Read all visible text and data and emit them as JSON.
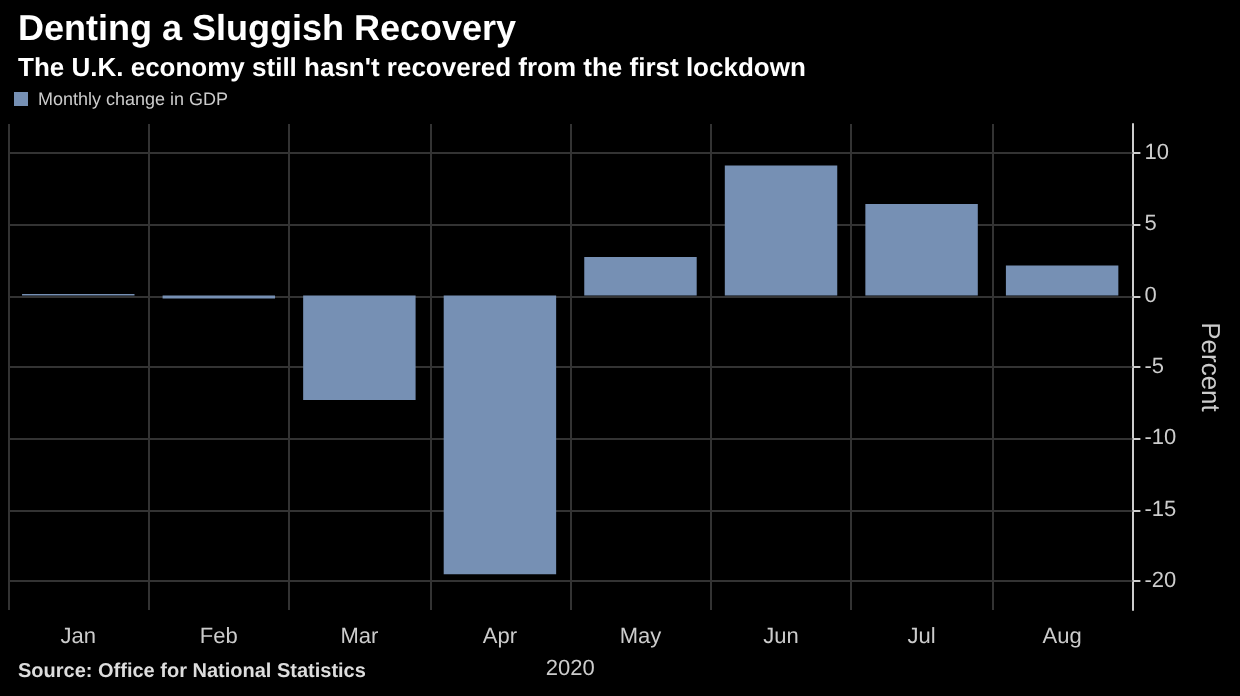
{
  "chart_data": {
    "type": "bar",
    "title": "Denting a Sluggish Recovery",
    "subtitle": "The U.K. economy still hasn't recovered from the first lockdown",
    "xlabel": "2020",
    "ylabel": "Percent",
    "categories": [
      "Jan",
      "Feb",
      "Mar",
      "Apr",
      "May",
      "Jun",
      "Jul",
      "Aug"
    ],
    "series": [
      {
        "name": "Monthly change in GDP",
        "color": "#7690b4",
        "values": [
          0.1,
          -0.2,
          -7.3,
          -19.5,
          2.7,
          9.1,
          6.4,
          2.1
        ]
      }
    ],
    "ylim": [
      -22,
      12
    ],
    "yticks": [
      -20,
      -15,
      -10,
      -5,
      0,
      5,
      10
    ],
    "grid": true,
    "legend": "top left",
    "annotations": [
      "Source: Office for National Statistics"
    ]
  }
}
